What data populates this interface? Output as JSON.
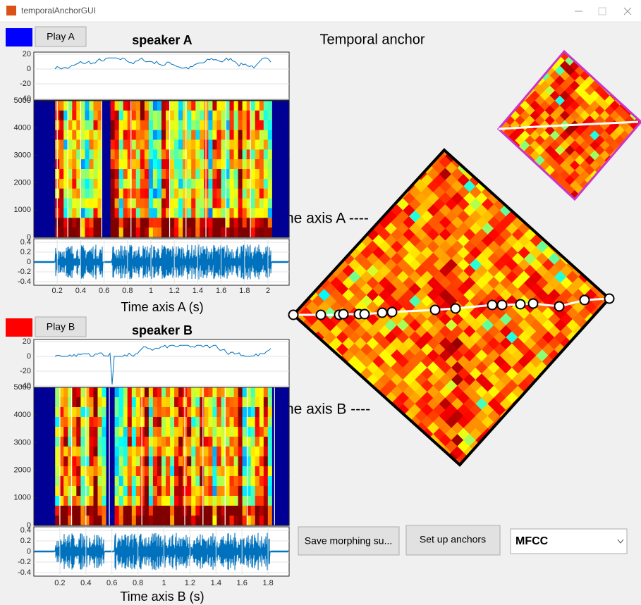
{
  "window": {
    "title": "temporalAnchorGUI"
  },
  "panel_a": {
    "button": "Play A",
    "title": "speaker A",
    "power_ticks": [
      20,
      0,
      -20,
      -40
    ],
    "spectrogram_ticks": [
      5000,
      4000,
      3000,
      2000,
      1000,
      0
    ],
    "waveform_ticks": [
      0.4,
      0.2,
      0,
      -0.2,
      -0.4
    ],
    "time_ticks": [
      0.2,
      0.4,
      0.6,
      0.8,
      1,
      1.2,
      1.4,
      1.6,
      1.8,
      2
    ],
    "xlabel": "Time axis A (s)"
  },
  "panel_b": {
    "button": "Play B",
    "title": "speaker B",
    "power_ticks": [
      20,
      0,
      -20,
      -40
    ],
    "spectrogram_ticks": [
      5000,
      4000,
      3000,
      2000,
      1000,
      0
    ],
    "waveform_ticks": [
      0.4,
      0.2,
      0,
      -0.2,
      -0.4
    ],
    "time_ticks": [
      0.2,
      0.4,
      0.6,
      0.8,
      1,
      1.2,
      1.4,
      1.6,
      1.8
    ],
    "xlabel": "Time axis B (s)"
  },
  "anchor_view": {
    "title": "Temporal anchor",
    "axis_a_label": "ne axis A ----",
    "axis_b_label": "ne axis B ----"
  },
  "controls": {
    "save_button": "Save morphing su...",
    "anchor_button": "Set up anchors",
    "feature_select": "MFCC"
  }
}
